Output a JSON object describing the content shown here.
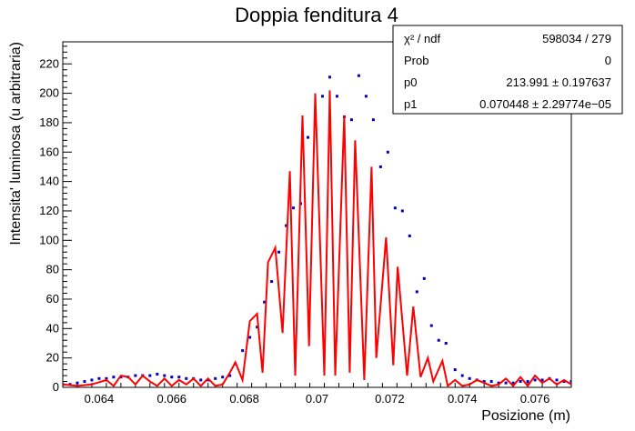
{
  "chart_data": {
    "type": "scatter",
    "title": "Doppia fenditura 4",
    "xlabel": "Posizione (m)",
    "ylabel": "Intensita' luminosa (u arbitraria)",
    "xlim": [
      0.063,
      0.077
    ],
    "ylim": [
      0,
      235
    ],
    "x_ticks": [
      "0.064",
      "0.066",
      "0.068",
      "0.07",
      "0.072",
      "0.074",
      "0.076"
    ],
    "y_ticks": [
      "0",
      "20",
      "40",
      "60",
      "80",
      "100",
      "120",
      "140",
      "160",
      "180",
      "200",
      "220"
    ],
    "grid": false,
    "legend": "none",
    "colors": {
      "data": "#0000cc",
      "fit": "#ff0000",
      "axes": "#000000"
    },
    "series": [
      {
        "kind": "points",
        "x": [
          0.063,
          0.0632,
          0.0634,
          0.0636,
          0.0638,
          0.064,
          0.0642,
          0.0644,
          0.0646,
          0.0648,
          0.065,
          0.0652,
          0.0654,
          0.0656,
          0.0658,
          0.066,
          0.0662,
          0.0664,
          0.0666,
          0.0668,
          0.067,
          0.0672,
          0.0674,
          0.0676,
          0.06775,
          0.06795,
          0.06815,
          0.06835,
          0.06855,
          0.06875,
          0.06895,
          0.06915,
          0.06935,
          0.06955,
          0.06975,
          0.06995,
          0.07015,
          0.07035,
          0.07055,
          0.07075,
          0.07095,
          0.07115,
          0.07135,
          0.07155,
          0.07175,
          0.07195,
          0.07215,
          0.07235,
          0.07255,
          0.07275,
          0.07295,
          0.07315,
          0.07335,
          0.07355,
          0.0738,
          0.074,
          0.0742,
          0.0744,
          0.0746,
          0.0748,
          0.075,
          0.0752,
          0.0754,
          0.0756,
          0.0758,
          0.076,
          0.0762,
          0.0764,
          0.0766,
          0.0768,
          0.077
        ],
        "y": [
          2,
          2,
          3,
          4,
          5,
          6,
          6,
          7,
          7,
          7,
          8,
          8,
          8,
          9,
          8,
          7,
          7,
          6,
          6,
          5,
          5,
          6,
          7,
          8,
          16,
          25,
          34,
          41,
          58,
          72,
          92,
          110,
          122,
          125,
          170,
          178,
          198,
          211,
          198,
          184,
          182,
          212,
          198,
          182,
          150,
          160,
          122,
          120,
          103,
          65,
          74,
          42,
          32,
          30,
          12,
          8,
          6,
          5,
          4,
          4,
          3,
          3,
          3,
          4,
          4,
          5,
          5,
          6,
          5,
          4,
          4
        ]
      },
      {
        "kind": "line",
        "x": [
          0.063,
          0.0634,
          0.0638,
          0.0642,
          0.0644,
          0.0646,
          0.0648,
          0.065,
          0.0652,
          0.0654,
          0.0656,
          0.0658,
          0.066,
          0.0662,
          0.0664,
          0.0666,
          0.0668,
          0.067,
          0.0672,
          0.0674,
          0.0676,
          0.06775,
          0.06795,
          0.06815,
          0.06835,
          0.0685,
          0.06865,
          0.06885,
          0.06905,
          0.06925,
          0.0694,
          0.0696,
          0.06978,
          0.06995,
          0.0702,
          0.07035,
          0.0705,
          0.07075,
          0.0709,
          0.07105,
          0.0713,
          0.0715,
          0.07163,
          0.0719,
          0.0721,
          0.07222,
          0.07248,
          0.07265,
          0.07285,
          0.07305,
          0.0732,
          0.07345,
          0.0736,
          0.0738,
          0.074,
          0.0742,
          0.0744,
          0.0746,
          0.0748,
          0.075,
          0.0752,
          0.0754,
          0.0756,
          0.0758,
          0.076,
          0.0762,
          0.0764,
          0.0766,
          0.0768,
          0.077
        ],
        "y": [
          2,
          1,
          2,
          5,
          1,
          8,
          7,
          2,
          8,
          4,
          1,
          6,
          1,
          5,
          2,
          6,
          1,
          6,
          1,
          2,
          10,
          17,
          5,
          45,
          50,
          10,
          85,
          95,
          37,
          147,
          8,
          185,
          28,
          200,
          8,
          202,
          8,
          185,
          10,
          168,
          5,
          150,
          20,
          102,
          15,
          82,
          8,
          55,
          7,
          20,
          4,
          18,
          1,
          5,
          1,
          2,
          5,
          3,
          1,
          2,
          6,
          1,
          7,
          1,
          8,
          3,
          6,
          2,
          5,
          2
        ]
      }
    ],
    "stats": [
      {
        "label": "χ² / ndf",
        "value": "598034 / 279"
      },
      {
        "label": "Prob",
        "value": "0"
      },
      {
        "label": "p0",
        "value": "213.991 ± 0.197637"
      },
      {
        "label": "p1",
        "value": "0.070448 ± 2.29774e−05"
      }
    ]
  }
}
